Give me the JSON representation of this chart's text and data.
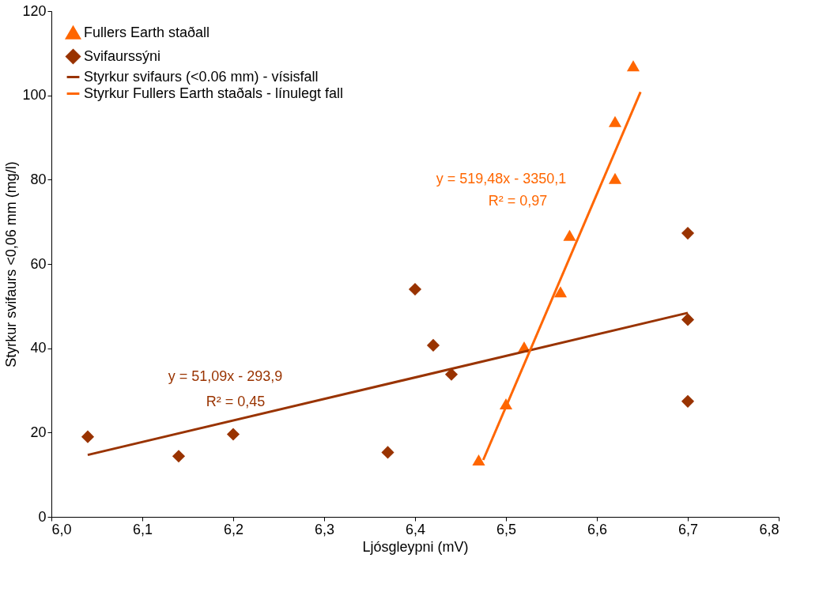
{
  "chart_data": {
    "type": "scatter",
    "xlabel": "Ljósgleypni (mV)",
    "ylabel": "Styrkur svifaurs <0,06 mm (mg/l)",
    "xlim": [
      6.0,
      6.8
    ],
    "xticks": [
      {
        "value": 6.0,
        "label": "6,0"
      },
      {
        "value": 6.1,
        "label": "6,1"
      },
      {
        "value": 6.2,
        "label": "6,2"
      },
      {
        "value": 6.3,
        "label": "6,3"
      },
      {
        "value": 6.4,
        "label": "6,4"
      },
      {
        "value": 6.5,
        "label": "6,5"
      },
      {
        "value": 6.6,
        "label": "6,6"
      },
      {
        "value": 6.7,
        "label": "6,7"
      },
      {
        "value": 6.8,
        "label": "6,8"
      }
    ],
    "ylim": [
      0,
      120
    ],
    "yticks": [
      0,
      20,
      40,
      60,
      80,
      100,
      120
    ],
    "grid": false,
    "legend": "top left",
    "series": [
      {
        "name": "Fullers Earth staðall",
        "marker": "triangle",
        "color": "#ff6600",
        "x": [
          6.47,
          6.5,
          6.52,
          6.56,
          6.57,
          6.62,
          6.62,
          6.64
        ],
        "values": [
          13.5,
          26.8,
          40.3,
          53.4,
          66.8,
          80.3,
          93.8,
          107
        ]
      },
      {
        "name": "Svifaurssýni",
        "marker": "diamond",
        "color": "#993300",
        "x": [
          6.04,
          6.14,
          6.2,
          6.37,
          6.4,
          6.42,
          6.44,
          6.7,
          6.7,
          6.7
        ],
        "values": [
          19.0,
          14.4,
          19.6,
          15.3,
          54.0,
          40.7,
          33.8,
          67.3,
          46.8,
          27.4
        ]
      },
      {
        "name": "Styrkur svifaurs (<0.06 mm) - vísisfall",
        "type": "line",
        "marker": "none",
        "color": "#993300",
        "x": [
          6.04,
          6.7
        ],
        "values": [
          14.7,
          48.4
        ]
      },
      {
        "name": "Styrkur Fullers Earth staðals - línulegt fall",
        "type": "line",
        "marker": "none",
        "color": "#ff6600",
        "x": [
          6.475,
          6.648
        ],
        "values": [
          13.5,
          100.8
        ]
      }
    ],
    "annotations": [
      "y = 519,48x - 3350,1",
      "R² = 0,97",
      "y = 51,09x - 293,9",
      "R² = 0,45"
    ]
  }
}
